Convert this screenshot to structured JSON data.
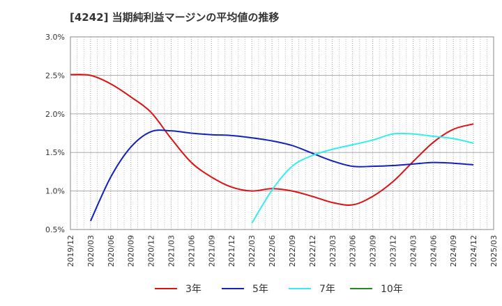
{
  "chart_data": {
    "type": "line",
    "title": "[4242]  当期純利益マージンの平均値の推移",
    "xlabel": "",
    "ylabel": "",
    "x_ticks": [
      "2019/12",
      "2020/03",
      "2020/06",
      "2020/09",
      "2020/12",
      "2021/03",
      "2021/06",
      "2021/09",
      "2021/12",
      "2022/03",
      "2022/06",
      "2022/09",
      "2022/12",
      "2023/03",
      "2023/06",
      "2023/09",
      "2023/12",
      "2024/03",
      "2024/06",
      "2024/09",
      "2024/12",
      "2025/03"
    ],
    "ylim": [
      0.5,
      3.0
    ],
    "y_ticks": [
      "0.5%",
      "1.0%",
      "1.5%",
      "2.0%",
      "2.5%",
      "3.0%"
    ],
    "grid": true,
    "legend_position": "bottom",
    "series": [
      {
        "name": "3年",
        "color": "#dd1111",
        "points": [
          [
            "2019/12",
            2.51
          ],
          [
            "2020/03",
            2.5
          ],
          [
            "2020/06",
            2.39
          ],
          [
            "2020/09",
            2.22
          ],
          [
            "2020/12",
            2.02
          ],
          [
            "2021/03",
            1.68
          ],
          [
            "2021/06",
            1.37
          ],
          [
            "2021/09",
            1.18
          ],
          [
            "2021/12",
            1.05
          ],
          [
            "2022/03",
            1.0
          ],
          [
            "2022/06",
            1.03
          ],
          [
            "2022/09",
            1.0
          ],
          [
            "2022/12",
            0.93
          ],
          [
            "2023/03",
            0.85
          ],
          [
            "2023/06",
            0.82
          ],
          [
            "2023/09",
            0.93
          ],
          [
            "2023/12",
            1.12
          ],
          [
            "2024/03",
            1.38
          ],
          [
            "2024/06",
            1.63
          ],
          [
            "2024/09",
            1.8
          ],
          [
            "2024/12",
            1.87
          ]
        ]
      },
      {
        "name": "5年",
        "color": "#1122bb",
        "points": [
          [
            "2020/03",
            0.61
          ],
          [
            "2020/06",
            1.18
          ],
          [
            "2020/09",
            1.57
          ],
          [
            "2020/12",
            1.77
          ],
          [
            "2021/03",
            1.78
          ],
          [
            "2021/06",
            1.75
          ],
          [
            "2021/09",
            1.73
          ],
          [
            "2021/12",
            1.72
          ],
          [
            "2022/03",
            1.69
          ],
          [
            "2022/06",
            1.65
          ],
          [
            "2022/09",
            1.59
          ],
          [
            "2022/12",
            1.49
          ],
          [
            "2023/03",
            1.39
          ],
          [
            "2023/06",
            1.32
          ],
          [
            "2023/09",
            1.32
          ],
          [
            "2023/12",
            1.33
          ],
          [
            "2024/03",
            1.35
          ],
          [
            "2024/06",
            1.37
          ],
          [
            "2024/09",
            1.36
          ],
          [
            "2024/12",
            1.34
          ]
        ]
      },
      {
        "name": "7年",
        "color": "#33eeee",
        "points": [
          [
            "2022/03",
            0.58
          ],
          [
            "2022/06",
            1.01
          ],
          [
            "2022/09",
            1.32
          ],
          [
            "2022/12",
            1.46
          ],
          [
            "2023/03",
            1.54
          ],
          [
            "2023/06",
            1.6
          ],
          [
            "2023/09",
            1.66
          ],
          [
            "2023/12",
            1.74
          ],
          [
            "2024/03",
            1.74
          ],
          [
            "2024/06",
            1.71
          ],
          [
            "2024/09",
            1.68
          ],
          [
            "2024/12",
            1.62
          ]
        ]
      },
      {
        "name": "10年",
        "color": "#228822",
        "points": []
      }
    ]
  }
}
